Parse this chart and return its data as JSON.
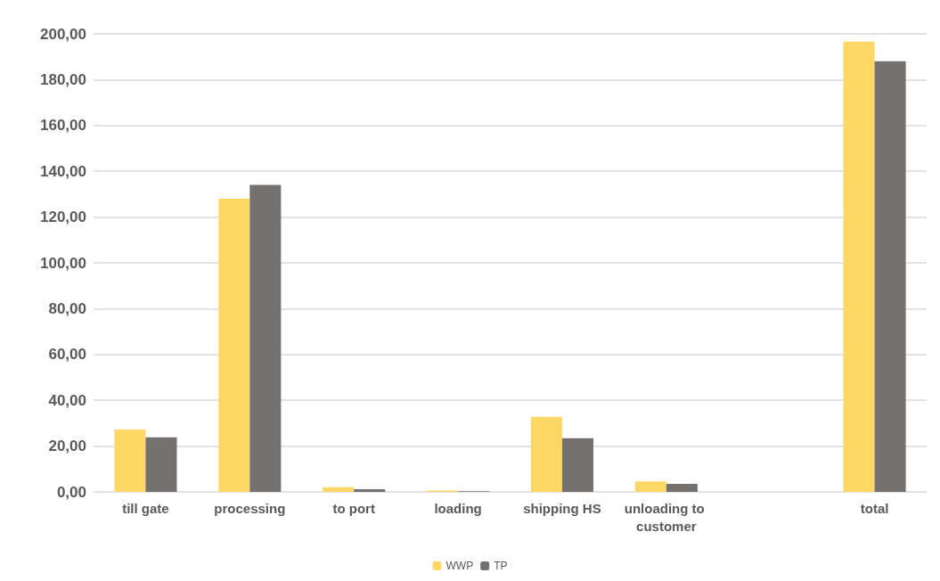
{
  "chart_data": {
    "type": "bar",
    "categories": [
      "till gate",
      "processing",
      "to port",
      "loading",
      "shipping HS",
      "unloading to customer",
      null,
      "total"
    ],
    "series": [
      {
        "name": "WWP",
        "color": "#fcd766",
        "values": [
          27.2,
          128,
          2,
          0.6,
          32.8,
          4.6,
          null,
          196.6
        ]
      },
      {
        "name": "TP",
        "color": "#767171",
        "values": [
          23.8,
          134,
          1.2,
          0.3,
          23.4,
          3.5,
          null,
          188
        ]
      }
    ],
    "ylim": [
      0,
      200
    ],
    "yticks": [
      {
        "value": 0,
        "label": "0,00"
      },
      {
        "value": 20,
        "label": "20,00"
      },
      {
        "value": 40,
        "label": "40,00"
      },
      {
        "value": 60,
        "label": "60,00"
      },
      {
        "value": 80,
        "label": "80,00"
      },
      {
        "value": 100,
        "label": "100,00"
      },
      {
        "value": 120,
        "label": "120,00"
      },
      {
        "value": 140,
        "label": "140,00"
      },
      {
        "value": 160,
        "label": "160,00"
      },
      {
        "value": 180,
        "label": "180,00"
      },
      {
        "value": 200,
        "label": "200,00"
      }
    ],
    "grid": "y",
    "legend": "bottom"
  }
}
